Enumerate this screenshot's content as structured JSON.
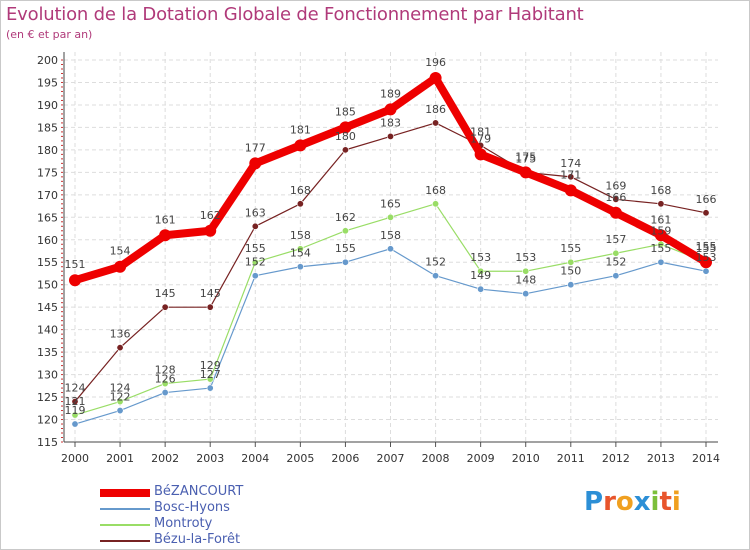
{
  "chart_data": {
    "type": "line",
    "title": "Evolution de la Dotation Globale de Fonctionnement par Habitant",
    "subtitle": "(en € et par an)",
    "x": [
      "2000",
      "2001",
      "2002",
      "2003",
      "2004",
      "2005",
      "2006",
      "2007",
      "2008",
      "2009",
      "2010",
      "2011",
      "2012",
      "2013",
      "2014"
    ],
    "ylim": [
      115,
      200
    ],
    "yticks": [
      "115",
      "120",
      "125",
      "130",
      "135",
      "140",
      "145",
      "150",
      "155",
      "160",
      "165",
      "170",
      "175",
      "180",
      "185",
      "190",
      "195",
      "200"
    ],
    "series": [
      {
        "name": "BéZANCOURT",
        "color": "#ee0000",
        "values": [
          151,
          154,
          161,
          162,
          177,
          181,
          185,
          189,
          196,
          179,
          175,
          171,
          166,
          161,
          155
        ],
        "labels": [
          "151",
          "154",
          "161",
          "162",
          "177",
          "181",
          "185",
          "189",
          "196",
          "179",
          "175",
          "171",
          "166",
          "161",
          "155"
        ]
      },
      {
        "name": "Bosc-Hyons",
        "color": "#6699cc",
        "values": [
          119,
          122,
          126,
          127,
          152,
          154,
          155,
          158,
          152,
          149,
          148,
          150,
          152,
          155,
          153
        ],
        "labels": [
          "119",
          "122",
          "126",
          "127",
          "152",
          "154",
          "155",
          "158",
          "152",
          "149",
          "148",
          "150",
          "152",
          "155",
          "153"
        ]
      },
      {
        "name": "Montroty",
        "color": "#99dd66",
        "values": [
          121,
          124,
          128,
          129,
          155,
          158,
          162,
          165,
          168,
          153,
          153,
          155,
          157,
          159,
          155
        ],
        "labels": [
          "121",
          "124",
          "128",
          "129",
          "155",
          "158",
          "162",
          "165",
          "168",
          "153",
          "153",
          "155",
          "157",
          "159",
          "155"
        ]
      },
      {
        "name": "Bézu-la-Forêt",
        "color": "#772222",
        "values": [
          124,
          136,
          145,
          145,
          163,
          168,
          180,
          183,
          186,
          181,
          175,
          174,
          169,
          168,
          166
        ],
        "labels": [
          "124",
          "136",
          "145",
          "145",
          "163",
          "168",
          "180",
          "183",
          "186",
          "181",
          "175",
          "174",
          "169",
          "168",
          "166"
        ]
      }
    ]
  },
  "legend": {
    "items": [
      {
        "label": "BéZANCOURT",
        "color": "#ee0000"
      },
      {
        "label": "Bosc-Hyons",
        "color": "#6699cc"
      },
      {
        "label": "Montroty",
        "color": "#99dd66"
      },
      {
        "label": "Bézu-la-Forêt",
        "color": "#772222"
      }
    ]
  },
  "brand": {
    "text": "Proxiti",
    "colors": [
      "#2c8fd6",
      "#e8552c",
      "#f0a020",
      "#2c8fd6",
      "#7bbf3a",
      "#e8552c",
      "#f0a020"
    ]
  }
}
